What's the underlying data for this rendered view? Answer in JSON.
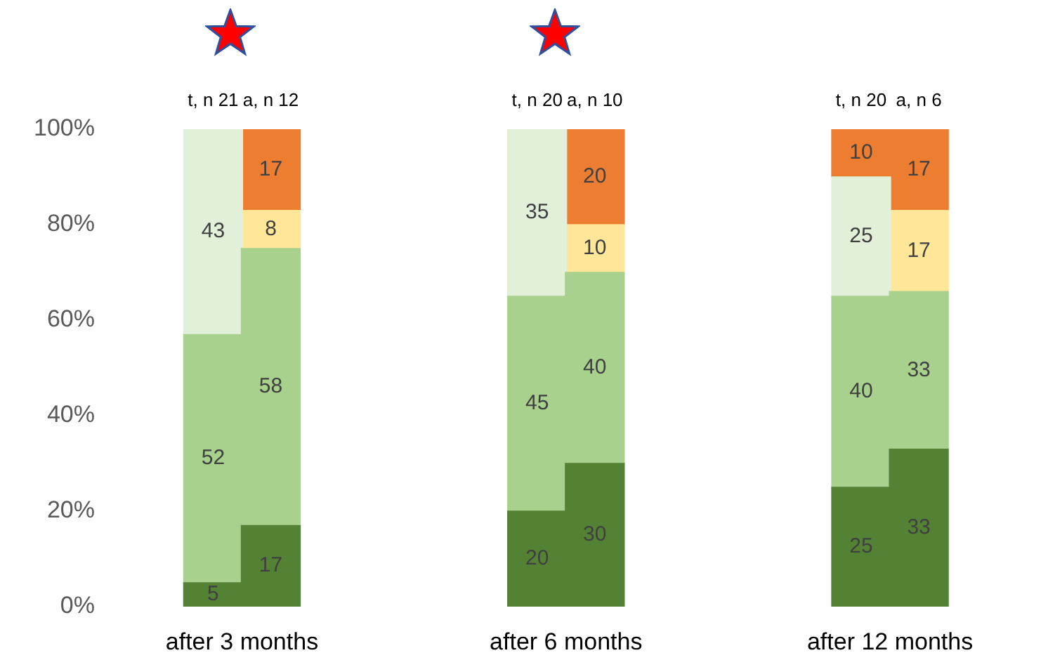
{
  "chart_data": {
    "type": "bar",
    "stacked": true,
    "data_labels": true,
    "grid": false,
    "legend": false,
    "categories": [
      "t, n 21",
      "a, n 12",
      "t, n 20",
      "a, n 10",
      "t, n 20",
      "a, n 6"
    ],
    "series": [
      {
        "color": "#548235",
        "values": [
          5,
          17,
          20,
          30,
          25,
          33
        ]
      },
      {
        "color": "#a9d18e",
        "values": [
          52,
          58,
          45,
          40,
          40,
          33
        ]
      },
      {
        "color": "#e2f0d9",
        "values": [
          43,
          null,
          35,
          null,
          25,
          null
        ]
      },
      {
        "color": "#ffe699",
        "values": [
          null,
          8,
          null,
          10,
          null,
          17
        ]
      },
      {
        "color": "#ed7d31",
        "values": [
          null,
          17,
          null,
          20,
          10,
          17
        ]
      }
    ],
    "ylim": [
      0,
      100
    ],
    "yticks": [
      {
        "value": 0,
        "label": "0%"
      },
      {
        "value": 20,
        "label": "20%"
      },
      {
        "value": 40,
        "label": "40%"
      },
      {
        "value": 60,
        "label": "60%"
      },
      {
        "value": 80,
        "label": "80%"
      },
      {
        "value": 100,
        "label": "100%"
      }
    ],
    "annotations": [
      "after 3 months",
      "after 6 months",
      "after 12 months"
    ]
  }
}
